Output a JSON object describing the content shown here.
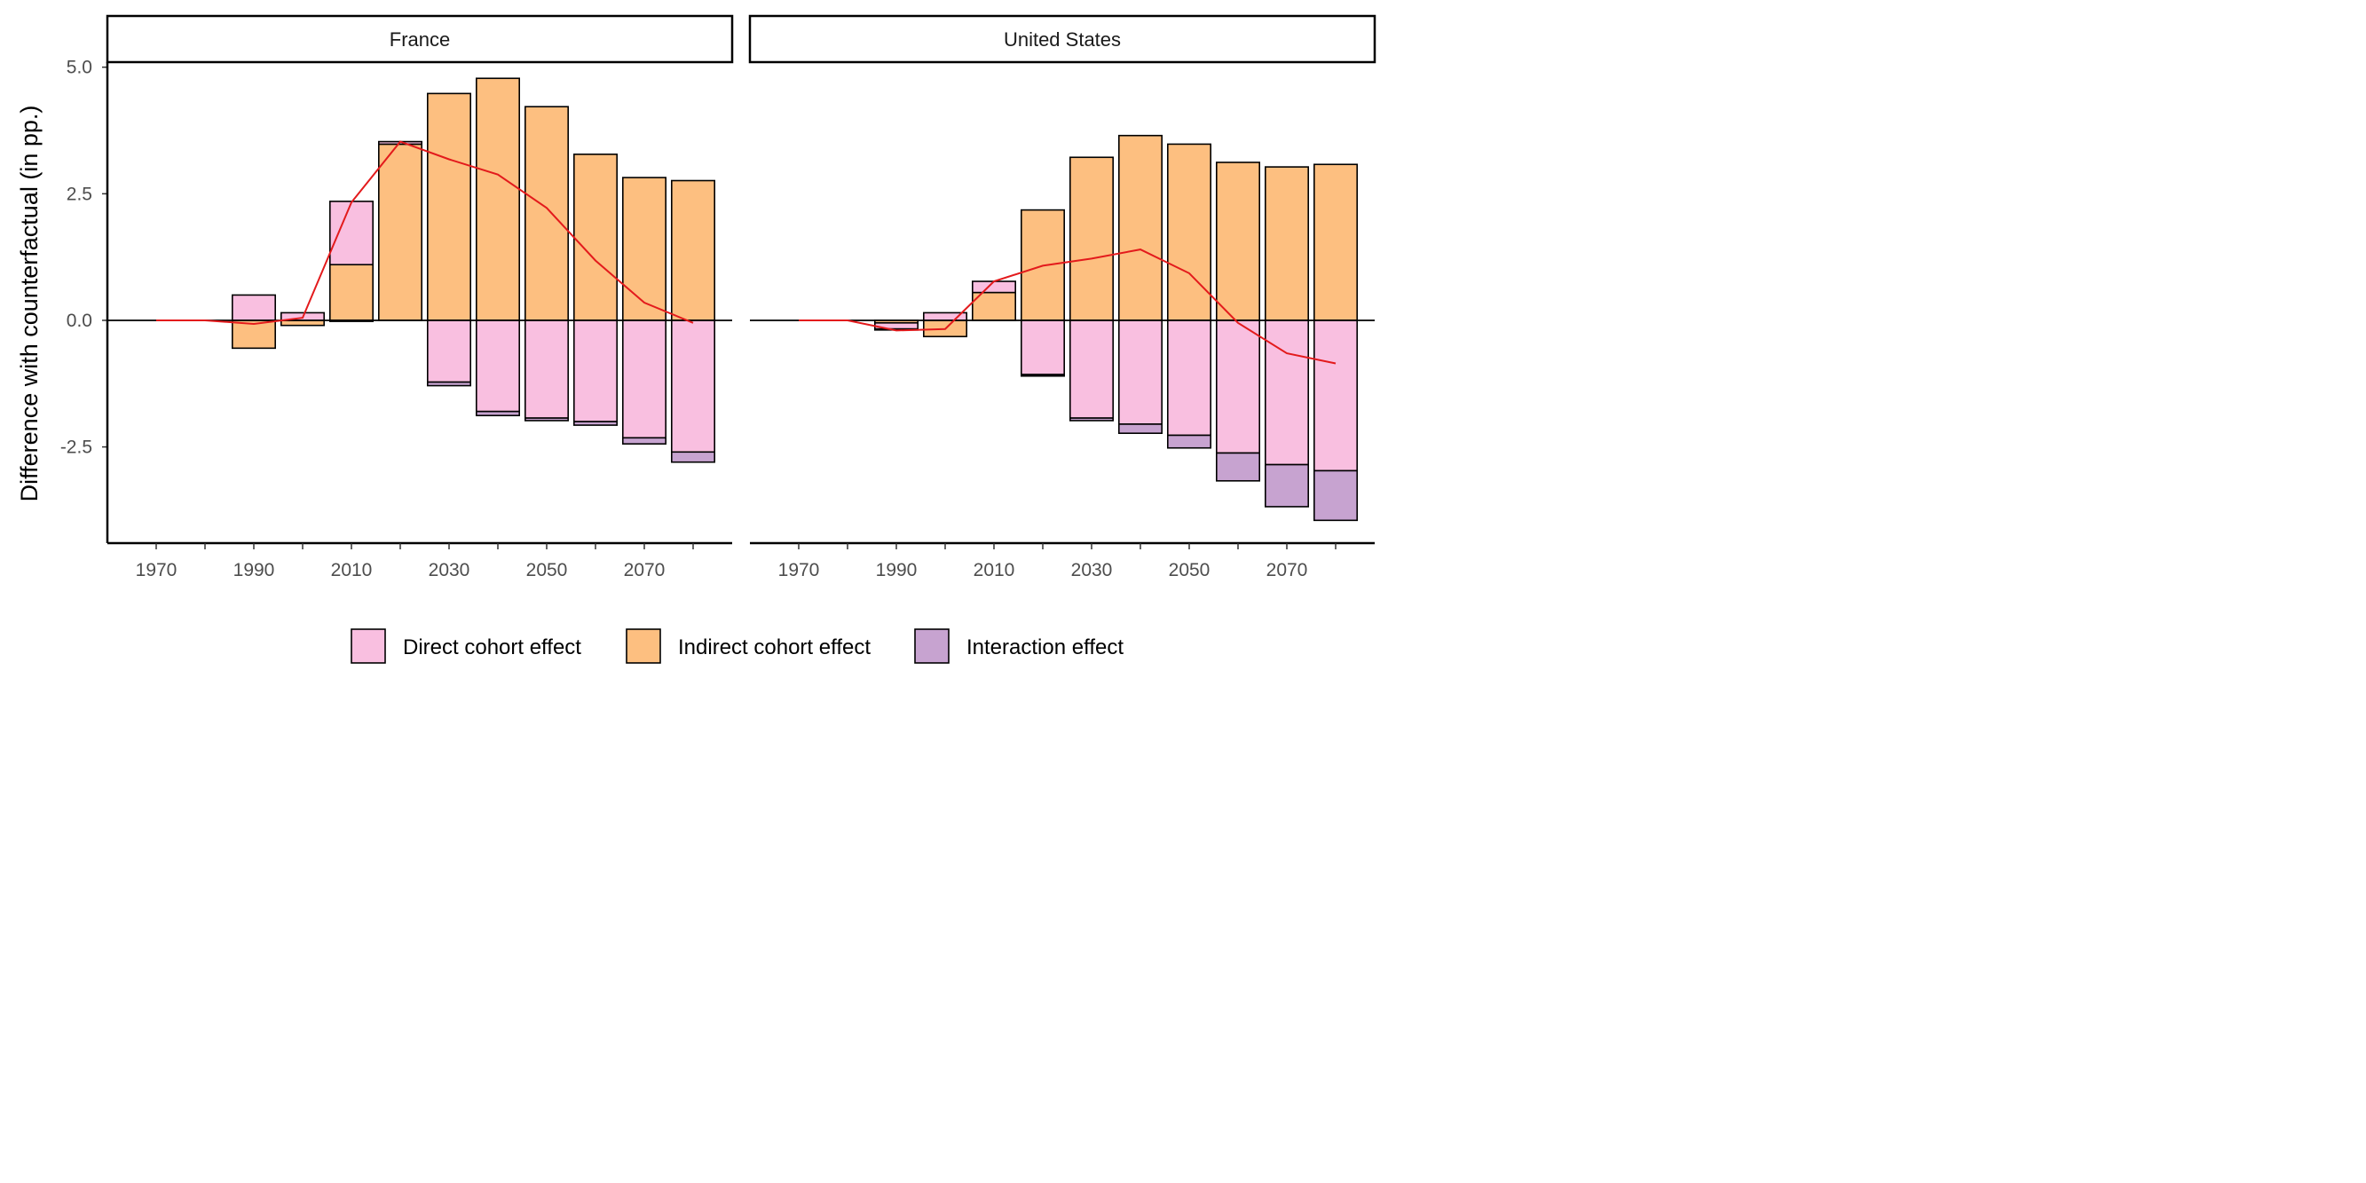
{
  "chart_data": {
    "type": "bar",
    "ylabel": "Difference with counterfactual (in pp.)",
    "xlabel": "",
    "x_ticks": [
      1970,
      1990,
      2010,
      2030,
      2050,
      2070
    ],
    "y_ticks": [
      5.0,
      2.5,
      0.0,
      -2.5
    ],
    "y_tick_labels": [
      "5.0",
      "2.5",
      "0.0",
      "-2.5"
    ],
    "ylim": [
      -4.4,
      5.1
    ],
    "xlim": [
      1960,
      2088
    ],
    "grid": false,
    "legend_position": "bottom",
    "colors": {
      "direct": "#F9BFE0",
      "indirect": "#FDBF80",
      "interaction": "#C7A3D0",
      "net_line": "#E31A1C",
      "bar_outline": "#000000"
    },
    "legend": [
      {
        "key": "direct",
        "label": "Direct cohort effect"
      },
      {
        "key": "indirect",
        "label": "Indirect cohort effect"
      },
      {
        "key": "interaction",
        "label": "Interaction effect"
      }
    ],
    "bar_years": [
      1990,
      2000,
      2010,
      2020,
      2030,
      2040,
      2050,
      2060,
      2070,
      2080
    ],
    "panels": [
      {
        "strip": "France",
        "direct": [
          0.5,
          0.15,
          1.25,
          0.05,
          -1.22,
          -1.8,
          -1.93,
          -2.0,
          -2.32,
          -2.6
        ],
        "indirect": [
          -0.55,
          -0.1,
          1.1,
          3.48,
          4.48,
          4.78,
          4.22,
          3.28,
          2.82,
          2.76
        ],
        "interaction": [
          0.0,
          0.0,
          -0.02,
          0.0,
          -0.07,
          -0.08,
          -0.05,
          -0.07,
          -0.12,
          -0.2
        ],
        "net_line": {
          "x": [
            1970,
            1980,
            1990,
            2000,
            2010,
            2020,
            2030,
            2040,
            2050,
            2060,
            2070,
            2080
          ],
          "y": [
            0.0,
            0.0,
            -0.07,
            0.05,
            2.33,
            3.53,
            3.18,
            2.88,
            2.22,
            1.18,
            0.35,
            -0.05
          ]
        }
      },
      {
        "strip": "United States",
        "direct": [
          -0.12,
          0.15,
          0.22,
          -1.07,
          -1.93,
          -2.05,
          -2.27,
          -2.62,
          -2.85,
          -2.97
        ],
        "indirect": [
          -0.05,
          -0.32,
          0.55,
          2.18,
          3.22,
          3.65,
          3.48,
          3.12,
          3.03,
          3.08
        ],
        "interaction": [
          -0.02,
          0.0,
          0.0,
          -0.03,
          -0.05,
          -0.18,
          -0.25,
          -0.55,
          -0.83,
          -0.98
        ],
        "net_line": {
          "x": [
            1970,
            1980,
            1990,
            2000,
            2010,
            2020,
            2030,
            2040,
            2050,
            2060,
            2070,
            2080
          ],
          "y": [
            0.0,
            0.0,
            -0.2,
            -0.17,
            0.77,
            1.08,
            1.22,
            1.4,
            0.93,
            -0.05,
            -0.65,
            -0.85
          ]
        }
      }
    ]
  }
}
